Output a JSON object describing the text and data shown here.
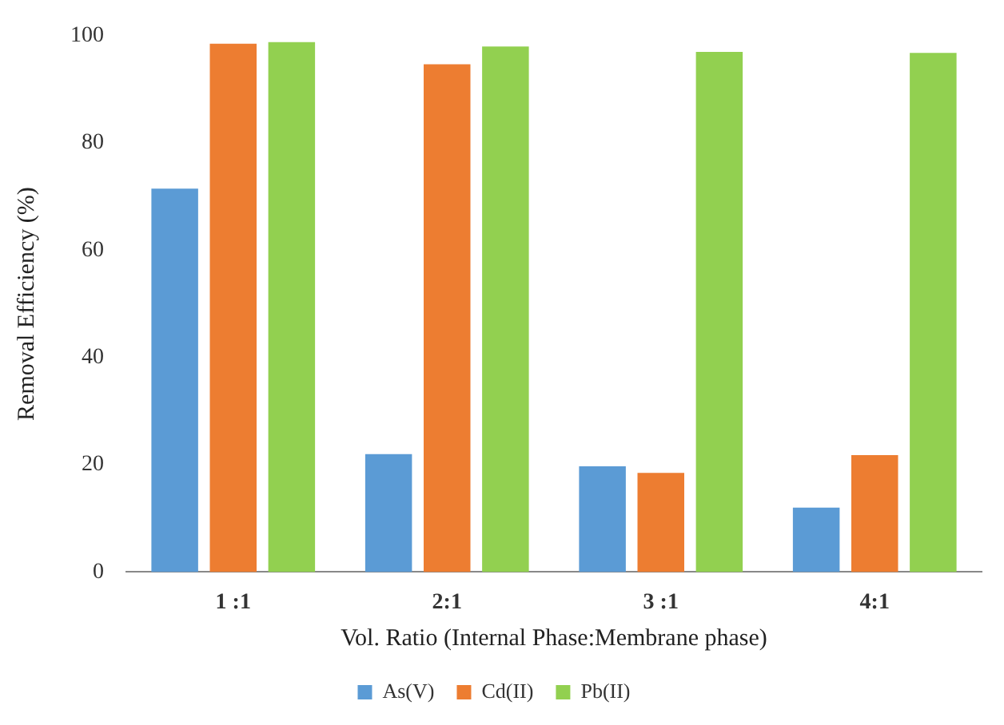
{
  "chart_data": {
    "type": "bar",
    "xlabel": "Vol. Ratio (Internal Phase:Membrane phase)",
    "ylabel": "Removal Efficiency (%)",
    "categories": [
      "1 :1",
      "2:1",
      "3 :1",
      "4:1"
    ],
    "series": [
      {
        "name": "As(V)",
        "color": "#5b9bd5",
        "values": [
          71.5,
          22,
          19.7,
          12
        ]
      },
      {
        "name": "Cd(II)",
        "color": "#ed7d31",
        "values": [
          98.5,
          94.7,
          18.5,
          21.8
        ]
      },
      {
        "name": "Pb(II)",
        "color": "#92d050",
        "values": [
          98.8,
          98,
          97,
          96.8
        ]
      }
    ],
    "ylim": [
      0,
      100
    ],
    "yticks": [
      0,
      20,
      40,
      60,
      80,
      100
    ],
    "grid": false,
    "legend": "bottom"
  }
}
